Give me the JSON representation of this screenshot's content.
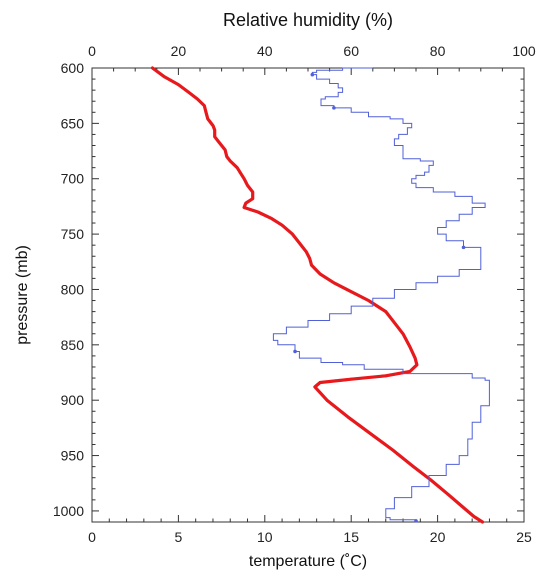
{
  "chart_data": {
    "type": "line",
    "title": "",
    "top_axis": {
      "label": "Relative humidity (%)",
      "range": [
        0,
        100
      ],
      "ticks": [
        "0",
        "20",
        "40",
        "60",
        "80",
        "100"
      ]
    },
    "bottom_axis": {
      "label": "temperature (˚C)",
      "range": [
        0,
        25
      ],
      "ticks": [
        "0",
        "5",
        "10",
        "15",
        "20",
        "25"
      ]
    },
    "left_axis": {
      "label": "pressure (mb)",
      "range": [
        600,
        1010
      ],
      "inverted": true,
      "ticks": [
        "600",
        "650",
        "700",
        "750",
        "800",
        "850",
        "900",
        "950",
        "1000"
      ]
    },
    "grid": false,
    "series": [
      {
        "id": "temperature",
        "axis": "bottom",
        "color": "#e8191c",
        "points": [
          [
            3.5,
            600
          ],
          [
            4.2,
            608
          ],
          [
            5.0,
            615
          ],
          [
            5.6,
            622
          ],
          [
            6.1,
            628
          ],
          [
            6.5,
            634
          ],
          [
            6.6,
            640
          ],
          [
            6.7,
            646
          ],
          [
            7.0,
            652
          ],
          [
            7.1,
            656
          ],
          [
            7.1,
            662
          ],
          [
            7.3,
            666
          ],
          [
            7.5,
            670
          ],
          [
            7.7,
            674
          ],
          [
            7.8,
            680
          ],
          [
            8.0,
            684
          ],
          [
            8.4,
            690
          ],
          [
            8.6,
            695
          ],
          [
            8.8,
            700
          ],
          [
            9.0,
            706
          ],
          [
            9.3,
            712
          ],
          [
            9.3,
            718
          ],
          [
            8.9,
            722
          ],
          [
            8.8,
            726
          ],
          [
            9.6,
            730
          ],
          [
            10.4,
            736
          ],
          [
            11.0,
            742
          ],
          [
            11.6,
            750
          ],
          [
            12.0,
            758
          ],
          [
            12.4,
            766
          ],
          [
            12.6,
            772
          ],
          [
            12.7,
            778
          ],
          [
            13.2,
            786
          ],
          [
            14.0,
            794
          ],
          [
            15.0,
            802
          ],
          [
            16.0,
            810
          ],
          [
            17.0,
            820
          ],
          [
            17.5,
            830
          ],
          [
            18.0,
            840
          ],
          [
            18.4,
            852
          ],
          [
            18.7,
            862
          ],
          [
            18.8,
            868
          ],
          [
            18.4,
            874
          ],
          [
            17.0,
            878
          ],
          [
            15.0,
            881
          ],
          [
            13.2,
            884
          ],
          [
            12.9,
            888
          ],
          [
            13.6,
            900
          ],
          [
            14.8,
            915
          ],
          [
            16.1,
            930
          ],
          [
            17.4,
            945
          ],
          [
            18.6,
            960
          ],
          [
            19.6,
            972
          ],
          [
            20.6,
            985
          ],
          [
            21.5,
            997
          ],
          [
            22.1,
            1005
          ],
          [
            22.6,
            1010
          ]
        ]
      },
      {
        "id": "relative-humidity",
        "axis": "top",
        "color": "#5060d8",
        "points": [
          [
            65,
            600
          ],
          [
            58,
            602
          ],
          [
            52,
            604
          ],
          [
            51,
            606
          ],
          [
            52,
            610
          ],
          [
            55,
            614
          ],
          [
            57,
            618
          ],
          [
            58,
            622
          ],
          [
            57,
            626
          ],
          [
            54,
            628
          ],
          [
            53,
            634
          ],
          [
            56,
            636
          ],
          [
            60,
            640
          ],
          [
            64,
            644
          ],
          [
            69,
            646
          ],
          [
            72,
            650
          ],
          [
            74,
            654
          ],
          [
            73,
            660
          ],
          [
            71,
            664
          ],
          [
            70,
            670
          ],
          [
            72,
            676
          ],
          [
            72,
            682
          ],
          [
            76,
            684
          ],
          [
            79,
            688
          ],
          [
            78,
            694
          ],
          [
            77,
            697
          ],
          [
            75,
            700
          ],
          [
            74,
            704
          ],
          [
            75,
            708
          ],
          [
            79,
            712
          ],
          [
            84,
            716
          ],
          [
            88,
            722
          ],
          [
            91,
            726
          ],
          [
            88,
            732
          ],
          [
            85,
            738
          ],
          [
            82,
            744
          ],
          [
            80,
            750
          ],
          [
            82,
            756
          ],
          [
            86,
            762
          ],
          [
            90,
            768
          ],
          [
            90,
            774
          ],
          [
            90,
            782
          ],
          [
            85,
            788
          ],
          [
            80,
            794
          ],
          [
            75,
            800
          ],
          [
            70,
            808
          ],
          [
            65,
            815
          ],
          [
            60,
            822
          ],
          [
            55,
            828
          ],
          [
            50,
            834
          ],
          [
            45,
            840
          ],
          [
            42,
            846
          ],
          [
            43,
            850
          ],
          [
            47,
            856
          ],
          [
            48,
            862
          ],
          [
            53,
            866
          ],
          [
            58,
            868
          ],
          [
            63,
            872
          ],
          [
            72,
            876
          ],
          [
            88,
            880
          ],
          [
            91,
            882
          ],
          [
            92,
            890
          ],
          [
            92,
            905
          ],
          [
            90,
            920
          ],
          [
            88,
            935
          ],
          [
            87,
            950
          ],
          [
            85,
            958
          ],
          [
            82,
            968
          ],
          [
            78,
            978
          ],
          [
            74,
            988
          ],
          [
            70,
            998
          ],
          [
            68,
            1006
          ],
          [
            69,
            1008
          ],
          [
            75,
            1009
          ]
        ]
      }
    ]
  }
}
